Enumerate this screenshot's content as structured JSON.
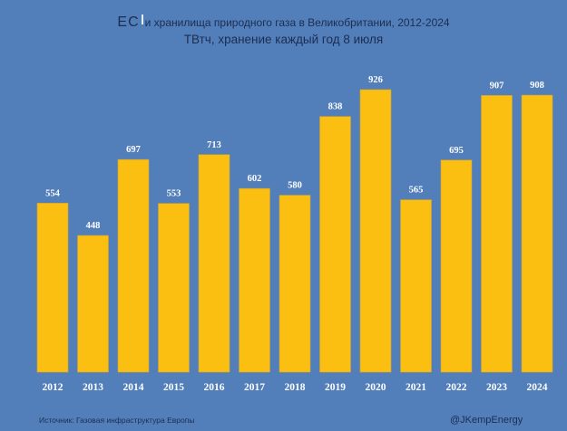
{
  "chart_data": {
    "type": "bar",
    "title_prefix": "ЕС",
    "title": "и хранилища природного газа в Великобритании, 2012-2024",
    "subtitle": "ТВтч, хранение каждый год 8 июля",
    "categories": [
      "2012",
      "2013",
      "2014",
      "2015",
      "2016",
      "2017",
      "2018",
      "2019",
      "2020",
      "2021",
      "2022",
      "2023",
      "2024"
    ],
    "values": [
      554,
      448,
      697,
      553,
      713,
      602,
      580,
      838,
      926,
      565,
      695,
      907,
      908
    ],
    "xlabel": "",
    "ylabel": "",
    "ylim": [
      0,
      926
    ],
    "grid": false,
    "legend": "none",
    "bar_color": "#fbbf12",
    "background_color": "#527fba",
    "source": "Источник: Газовая инфраструктура Европы",
    "credit": "@JKempEnergy"
  }
}
